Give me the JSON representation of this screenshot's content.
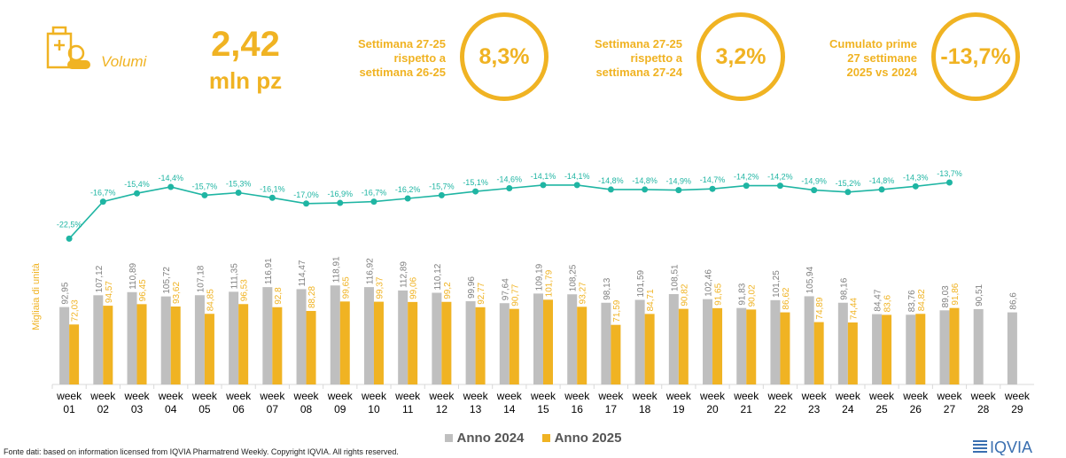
{
  "header": {
    "kpi_label": "Volumi",
    "kpi_value": "2,42",
    "kpi_unit": "mln pz",
    "comparisons": [
      {
        "lines": [
          "Settimana 27-25",
          "rispetto a",
          "settimana 26-25"
        ],
        "value": "8,3%"
      },
      {
        "lines": [
          "Settimana 27-25",
          "rispetto a",
          "settimana 27-24"
        ],
        "value": "3,2%"
      },
      {
        "lines": [
          "Cumulato prime",
          "27 settimane",
          "2025 vs 2024"
        ],
        "value": "-13,7%"
      }
    ]
  },
  "colors": {
    "accent": "#f0b323",
    "series_2024": "#bfbfbf",
    "series_2025": "#f0b323",
    "line": "#1fb5a3",
    "logo": "#3a6fb0"
  },
  "chart_data": {
    "type": "bar",
    "ylabel": "Migliaia di unità",
    "categories": [
      "week 01",
      "week 02",
      "week 03",
      "week 04",
      "week 05",
      "week 06",
      "week 07",
      "week 08",
      "week 09",
      "week 10",
      "week 11",
      "week 12",
      "week 13",
      "week 14",
      "week 15",
      "week 16",
      "week 17",
      "week 18",
      "week 19",
      "week 20",
      "week 21",
      "week 22",
      "week 23",
      "week 24",
      "week 25",
      "week 26",
      "week 27",
      "week 28",
      "week 29"
    ],
    "series": [
      {
        "name": "Anno 2024",
        "values": [
          92.95,
          107.12,
          110.89,
          105.72,
          107.18,
          111.35,
          116.91,
          114.47,
          118.91,
          116.92,
          112.89,
          110.12,
          99.96,
          97.64,
          109.19,
          108.25,
          98.13,
          101.59,
          108.51,
          102.46,
          91.83,
          101.25,
          105.94,
          98.16,
          84.47,
          83.76,
          89.03,
          90.51,
          86.6
        ],
        "labels": [
          "92,95",
          "107,12",
          "110,89",
          "105,72",
          "107,18",
          "111,35",
          "116,91",
          "114,47",
          "118,91",
          "116,92",
          "112,89",
          "110,12",
          "99,96",
          "97,64",
          "109,19",
          "108,25",
          "98,13",
          "101,59",
          "108,51",
          "102,46",
          "91,83",
          "101,25",
          "105,94",
          "98,16",
          "84,47",
          "83,76",
          "89,03",
          "90,51",
          "86,6"
        ]
      },
      {
        "name": "Anno 2025",
        "values": [
          72.03,
          94.57,
          96.45,
          93.62,
          84.85,
          96.53,
          92.8,
          88.28,
          99.65,
          99.37,
          99.06,
          99.2,
          92.77,
          90.77,
          101.79,
          93.27,
          71.59,
          84.71,
          90.82,
          91.65,
          90.02,
          86.62,
          74.89,
          74.44,
          83.6,
          84.82,
          91.86,
          null,
          null
        ],
        "labels": [
          "72,03",
          "94,57",
          "96,45",
          "93,62",
          "84,85",
          "96,53",
          "92,8",
          "88,28",
          "99,65",
          "99,37",
          "99,06",
          "99,2",
          "92,77",
          "90,77",
          "101,79",
          "93,27",
          "71,59",
          "84,71",
          "90,82",
          "91,65",
          "90,02",
          "86,62",
          "74,89",
          "74,44",
          "83,6",
          "84,82",
          "91,86",
          "",
          ""
        ]
      }
    ],
    "line": {
      "values": [
        -22.5,
        -16.7,
        -15.4,
        -14.4,
        -15.7,
        -15.3,
        -16.1,
        -17.0,
        -16.9,
        -16.7,
        -16.2,
        -15.7,
        -15.1,
        -14.6,
        -14.1,
        -14.1,
        -14.8,
        -14.8,
        -14.9,
        -14.7,
        -14.2,
        -14.2,
        -14.9,
        -15.2,
        -14.8,
        -14.3,
        -13.7
      ],
      "labels": [
        "-22,5%",
        "-16,7%",
        "-15,4%",
        "-14,4%",
        "-15,7%",
        "-15,3%",
        "-16,1%",
        "-17,0%",
        "-16,9%",
        "-16,7%",
        "-16,2%",
        "-15,7%",
        "-15,1%",
        "-14,6%",
        "-14,1%",
        "-14,1%",
        "-14,8%",
        "-14,8%",
        "-14,9%",
        "-14,7%",
        "-14,2%",
        "-14,2%",
        "-14,9%",
        "-15,2%",
        "-14,8%",
        "-14,3%",
        "-13,7%"
      ]
    },
    "legend": [
      "Anno 2024",
      "Anno 2025"
    ],
    "legend_position": "bottom"
  },
  "footer": {
    "source": "Fonte dati: based on information licensed from IQVIA Pharmatrend Weekly. Copyright IQVIA. All rights reserved.",
    "logo_text": "IQVIA"
  }
}
